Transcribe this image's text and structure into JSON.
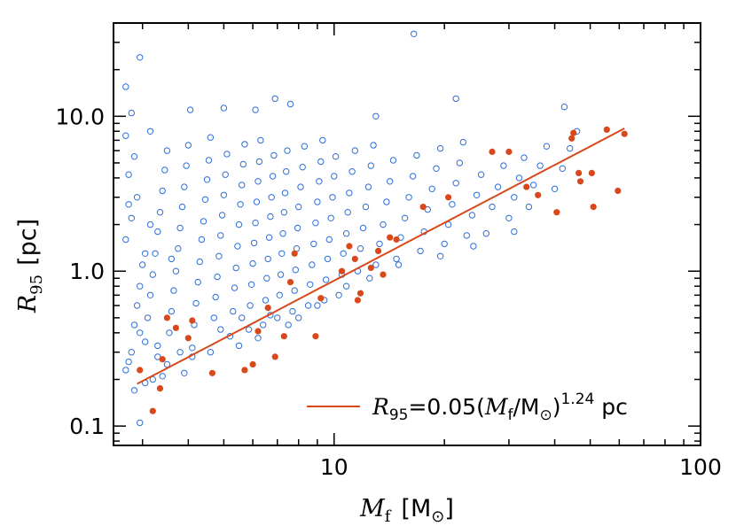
{
  "chart_data": {
    "type": "scatter",
    "x_scale": "log",
    "y_scale": "log",
    "xlim": [
      2.5,
      100
    ],
    "ylim": [
      0.075,
      40
    ],
    "x_ticks": [
      {
        "value": 10,
        "label": "10"
      },
      {
        "value": 100,
        "label": "100"
      }
    ],
    "y_ticks": [
      {
        "value": 0.1,
        "label": "0.1"
      },
      {
        "value": 1.0,
        "label": "1.0"
      },
      {
        "value": 10.0,
        "label": "10.0"
      }
    ],
    "xlabel": {
      "symbol": "M",
      "sub": "f",
      "unit": "[M",
      "unit_close": "]"
    },
    "ylabel": {
      "symbol": "R",
      "sub": "95",
      "unit": "[pc]"
    },
    "legend": {
      "placement": "bottom-right",
      "text_symbol": "R",
      "text_sub": "95",
      "text_mid": "=0.05(",
      "text_m": "M",
      "text_msub": "f",
      "text_mo": "/M",
      "text_close": ")",
      "text_exp": "1.24",
      "text_unit": " pc"
    },
    "fit_line": {
      "coef": 0.05,
      "exponent": 1.24,
      "x_range": [
        2.9,
        62
      ],
      "color": "#d9481a"
    },
    "series": [
      {
        "marker": "open-circle",
        "color": "#2e6fd6",
        "points": [
          [
            2.7,
            0.23
          ],
          [
            2.75,
            0.26
          ],
          [
            2.8,
            0.3
          ],
          [
            2.85,
            0.45
          ],
          [
            2.9,
            0.6
          ],
          [
            2.95,
            0.8
          ],
          [
            3.0,
            1.1
          ],
          [
            2.7,
            1.6
          ],
          [
            2.8,
            2.2
          ],
          [
            2.9,
            3.0
          ],
          [
            2.75,
            4.2
          ],
          [
            2.85,
            5.5
          ],
          [
            2.7,
            7.5
          ],
          [
            2.8,
            10.5
          ],
          [
            2.7,
            15.5
          ],
          [
            2.95,
            24.0
          ],
          [
            3.05,
            0.35
          ],
          [
            3.1,
            0.5
          ],
          [
            3.15,
            0.7
          ],
          [
            3.2,
            0.95
          ],
          [
            3.25,
            1.3
          ],
          [
            3.3,
            1.8
          ],
          [
            3.35,
            2.4
          ],
          [
            3.4,
            3.3
          ],
          [
            3.45,
            4.5
          ],
          [
            3.5,
            6.0
          ],
          [
            3.15,
            8.0
          ],
          [
            3.3,
            0.28
          ],
          [
            3.2,
            0.2
          ],
          [
            2.95,
            0.105
          ],
          [
            3.55,
            0.4
          ],
          [
            3.6,
            0.55
          ],
          [
            3.65,
            0.75
          ],
          [
            3.7,
            1.0
          ],
          [
            3.75,
            1.4
          ],
          [
            3.8,
            1.9
          ],
          [
            3.85,
            2.6
          ],
          [
            3.9,
            3.5
          ],
          [
            3.95,
            4.8
          ],
          [
            4.0,
            6.5
          ],
          [
            4.05,
            11.0
          ],
          [
            4.1,
            0.32
          ],
          [
            4.15,
            0.45
          ],
          [
            4.2,
            0.62
          ],
          [
            4.25,
            0.85
          ],
          [
            4.3,
            1.15
          ],
          [
            4.35,
            1.6
          ],
          [
            4.4,
            2.1
          ],
          [
            4.45,
            2.9
          ],
          [
            4.5,
            3.9
          ],
          [
            4.55,
            5.2
          ],
          [
            4.6,
            7.3
          ],
          [
            4.7,
            0.5
          ],
          [
            4.75,
            0.68
          ],
          [
            4.8,
            0.92
          ],
          [
            4.85,
            1.25
          ],
          [
            4.9,
            1.7
          ],
          [
            4.95,
            2.3
          ],
          [
            5.0,
            3.1
          ],
          [
            5.05,
            4.2
          ],
          [
            5.1,
            5.7
          ],
          [
            5.0,
            11.3
          ],
          [
            5.2,
            0.38
          ],
          [
            5.3,
            0.55
          ],
          [
            5.35,
            0.78
          ],
          [
            5.4,
            1.05
          ],
          [
            5.45,
            1.45
          ],
          [
            5.5,
            2.0
          ],
          [
            5.55,
            2.7
          ],
          [
            5.6,
            3.6
          ],
          [
            5.65,
            4.9
          ],
          [
            5.7,
            6.6
          ],
          [
            5.85,
            0.42
          ],
          [
            5.9,
            0.6
          ],
          [
            5.95,
            0.82
          ],
          [
            6.0,
            1.12
          ],
          [
            6.05,
            1.52
          ],
          [
            6.1,
            2.05
          ],
          [
            6.15,
            2.8
          ],
          [
            6.2,
            3.8
          ],
          [
            6.25,
            5.1
          ],
          [
            6.3,
            7.0
          ],
          [
            6.1,
            11.0
          ],
          [
            6.4,
            0.45
          ],
          [
            6.5,
            0.65
          ],
          [
            6.55,
            0.9
          ],
          [
            6.6,
            1.2
          ],
          [
            6.65,
            1.65
          ],
          [
            6.7,
            2.25
          ],
          [
            6.75,
            3.0
          ],
          [
            6.8,
            4.1
          ],
          [
            6.85,
            5.6
          ],
          [
            6.9,
            13.0
          ],
          [
            7.0,
            0.5
          ],
          [
            7.1,
            0.7
          ],
          [
            7.15,
            0.95
          ],
          [
            7.2,
            1.3
          ],
          [
            7.25,
            1.75
          ],
          [
            7.3,
            2.4
          ],
          [
            7.35,
            3.2
          ],
          [
            7.4,
            4.4
          ],
          [
            7.45,
            6.0
          ],
          [
            7.6,
            12.0
          ],
          [
            7.7,
            0.55
          ],
          [
            7.8,
            0.75
          ],
          [
            7.85,
            1.02
          ],
          [
            7.9,
            1.4
          ],
          [
            7.95,
            1.9
          ],
          [
            8.0,
            2.6
          ],
          [
            8.1,
            3.5
          ],
          [
            8.2,
            4.7
          ],
          [
            8.3,
            6.4
          ],
          [
            8.5,
            0.6
          ],
          [
            8.6,
            0.82
          ],
          [
            8.7,
            1.1
          ],
          [
            8.8,
            1.5
          ],
          [
            8.9,
            2.05
          ],
          [
            9.0,
            2.8
          ],
          [
            9.1,
            3.8
          ],
          [
            9.2,
            5.1
          ],
          [
            9.3,
            7.0
          ],
          [
            9.4,
            0.65
          ],
          [
            9.5,
            0.88
          ],
          [
            9.6,
            1.2
          ],
          [
            9.7,
            1.6
          ],
          [
            9.8,
            2.2
          ],
          [
            9.9,
            3.0
          ],
          [
            10.0,
            4.1
          ],
          [
            10.1,
            5.5
          ],
          [
            10.3,
            0.7
          ],
          [
            10.5,
            0.95
          ],
          [
            10.6,
            1.3
          ],
          [
            10.8,
            1.75
          ],
          [
            10.9,
            2.4
          ],
          [
            11.0,
            3.2
          ],
          [
            11.2,
            4.4
          ],
          [
            11.4,
            6.0
          ],
          [
            11.6,
            1.0
          ],
          [
            11.8,
            1.4
          ],
          [
            12.0,
            1.9
          ],
          [
            12.2,
            2.6
          ],
          [
            12.4,
            3.5
          ],
          [
            12.6,
            4.8
          ],
          [
            12.8,
            6.5
          ],
          [
            13.0,
            1.1
          ],
          [
            13.3,
            1.5
          ],
          [
            13.6,
            2.0
          ],
          [
            13.9,
            2.8
          ],
          [
            14.2,
            3.8
          ],
          [
            14.5,
            5.2
          ],
          [
            14.8,
            1.2
          ],
          [
            15.2,
            1.65
          ],
          [
            15.6,
            2.2
          ],
          [
            16.0,
            3.0
          ],
          [
            16.4,
            4.1
          ],
          [
            16.8,
            5.6
          ],
          [
            17.2,
            1.35
          ],
          [
            17.6,
            1.8
          ],
          [
            18.0,
            2.5
          ],
          [
            18.5,
            3.4
          ],
          [
            19.0,
            4.6
          ],
          [
            19.5,
            6.2
          ],
          [
            20.0,
            1.5
          ],
          [
            20.5,
            2.0
          ],
          [
            21.0,
            2.7
          ],
          [
            21.5,
            3.7
          ],
          [
            22.0,
            5.0
          ],
          [
            22.5,
            6.8
          ],
          [
            23.0,
            1.7
          ],
          [
            23.8,
            2.3
          ],
          [
            24.5,
            3.1
          ],
          [
            25.2,
            4.2
          ],
          [
            26.0,
            1.75
          ],
          [
            27.0,
            2.6
          ],
          [
            28.0,
            3.5
          ],
          [
            29.0,
            4.8
          ],
          [
            30.0,
            2.2
          ],
          [
            31.0,
            3.0
          ],
          [
            32.0,
            4.0
          ],
          [
            33.0,
            5.4
          ],
          [
            34.0,
            2.6
          ],
          [
            35.0,
            3.6
          ],
          [
            36.5,
            4.8
          ],
          [
            38.0,
            6.4
          ],
          [
            40.0,
            3.4
          ],
          [
            42.0,
            4.6
          ],
          [
            44.0,
            6.2
          ],
          [
            46.0,
            8.0
          ],
          [
            42.5,
            11.5
          ],
          [
            16.5,
            34.0
          ],
          [
            21.5,
            13.0
          ],
          [
            13.0,
            10.0
          ],
          [
            3.5,
            0.25
          ],
          [
            3.9,
            0.22
          ],
          [
            4.1,
            0.28
          ],
          [
            2.85,
            0.17
          ],
          [
            3.05,
            0.19
          ],
          [
            3.4,
            0.21
          ],
          [
            5.5,
            0.33
          ],
          [
            6.2,
            0.37
          ],
          [
            4.6,
            0.3
          ],
          [
            7.5,
            0.45
          ],
          [
            8.0,
            0.5
          ],
          [
            3.8,
            0.3
          ],
          [
            3.3,
            0.33
          ],
          [
            2.95,
            0.4
          ],
          [
            3.05,
            1.3
          ],
          [
            3.15,
            2.0
          ],
          [
            2.75,
            2.7
          ],
          [
            3.6,
            1.2
          ],
          [
            4.9,
            0.42
          ],
          [
            5.6,
            0.5
          ],
          [
            6.7,
            0.52
          ],
          [
            9.0,
            0.6
          ],
          [
            10.8,
            0.8
          ],
          [
            12.5,
            0.9
          ],
          [
            15.0,
            1.1
          ],
          [
            19.5,
            1.25
          ],
          [
            24.0,
            1.45
          ],
          [
            31.0,
            1.8
          ]
        ]
      },
      {
        "marker": "filled-circle",
        "color": "#d9481a",
        "points": [
          [
            2.95,
            0.23
          ],
          [
            3.2,
            0.125
          ],
          [
            3.35,
            0.175
          ],
          [
            3.4,
            0.27
          ],
          [
            3.5,
            0.5
          ],
          [
            3.7,
            0.43
          ],
          [
            4.0,
            0.37
          ],
          [
            4.1,
            0.48
          ],
          [
            4.65,
            0.22
          ],
          [
            5.7,
            0.23
          ],
          [
            6.0,
            0.25
          ],
          [
            6.2,
            0.41
          ],
          [
            6.6,
            0.58
          ],
          [
            6.9,
            0.28
          ],
          [
            7.3,
            0.38
          ],
          [
            7.6,
            0.85
          ],
          [
            7.8,
            1.3
          ],
          [
            8.9,
            0.38
          ],
          [
            9.2,
            0.67
          ],
          [
            10.5,
            1.0
          ],
          [
            11.0,
            1.45
          ],
          [
            11.4,
            1.2
          ],
          [
            11.6,
            0.65
          ],
          [
            11.8,
            0.72
          ],
          [
            12.6,
            1.05
          ],
          [
            13.2,
            1.35
          ],
          [
            13.6,
            0.95
          ],
          [
            14.2,
            1.65
          ],
          [
            14.8,
            1.6
          ],
          [
            17.5,
            2.6
          ],
          [
            20.5,
            3.0
          ],
          [
            27.0,
            5.9
          ],
          [
            30.0,
            5.9
          ],
          [
            33.5,
            3.5
          ],
          [
            36.0,
            3.1
          ],
          [
            40.5,
            2.4
          ],
          [
            44.5,
            7.2
          ],
          [
            45.0,
            7.8
          ],
          [
            46.5,
            4.3
          ],
          [
            47.0,
            3.8
          ],
          [
            50.5,
            4.3
          ],
          [
            51.0,
            2.6
          ],
          [
            55.5,
            8.2
          ],
          [
            59.5,
            3.3
          ],
          [
            62.0,
            7.7
          ]
        ]
      }
    ]
  }
}
